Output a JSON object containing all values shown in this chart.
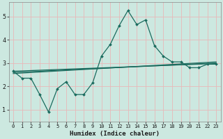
{
  "xlabel": "Humidex (Indice chaleur)",
  "bg_color": "#cce8e0",
  "grid_color": "#f0c8c8",
  "line_color": "#1a6b5e",
  "xlim": [
    -0.5,
    23.5
  ],
  "ylim": [
    0.5,
    5.6
  ],
  "xticks": [
    0,
    1,
    2,
    3,
    4,
    5,
    6,
    7,
    8,
    9,
    10,
    11,
    12,
    13,
    14,
    15,
    16,
    17,
    18,
    19,
    20,
    21,
    22,
    23
  ],
  "yticks": [
    1,
    2,
    3,
    4,
    5
  ],
  "line1_x": [
    0,
    1,
    2,
    3,
    4,
    5,
    6,
    7,
    8,
    9,
    10,
    11,
    12,
    13,
    14,
    15,
    16,
    17,
    18,
    19,
    20,
    21,
    22,
    23
  ],
  "line1_y": [
    2.65,
    2.35,
    2.35,
    1.65,
    0.9,
    1.9,
    2.2,
    1.65,
    1.65,
    2.15,
    3.3,
    3.8,
    4.6,
    5.25,
    4.65,
    4.85,
    3.75,
    3.3,
    3.05,
    3.05,
    2.8,
    2.8,
    2.95,
    2.95
  ],
  "line2_x": [
    0,
    23
  ],
  "line2_y": [
    2.65,
    2.98
  ],
  "line3_x": [
    0,
    23
  ],
  "line3_y": [
    2.6,
    3.0
  ],
  "line4_x": [
    0,
    23
  ],
  "line4_y": [
    2.55,
    3.05
  ]
}
